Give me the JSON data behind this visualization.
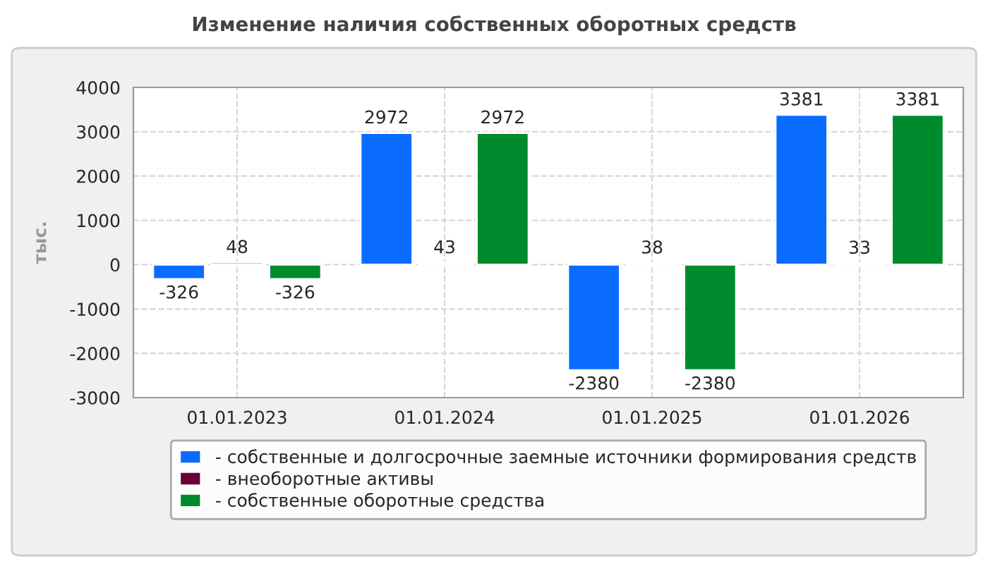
{
  "chart_data": {
    "type": "bar",
    "title": "Изменение наличия собственных оборотных средств",
    "ylabel": "тыс.",
    "categories": [
      "01.01.2023",
      "01.01.2024",
      "01.01.2025",
      "01.01.2026"
    ],
    "series": [
      {
        "name": "- собственные и долгосрочные заемные источники формирования средств",
        "color": "#0a6cff",
        "values": [
          -326,
          2972,
          -2380,
          3381
        ]
      },
      {
        "name": "- внеоборотные активы",
        "color": "#6b0035",
        "values": [
          48,
          43,
          38,
          33
        ]
      },
      {
        "name": "- собственные оборотные средства",
        "color": "#008a2e",
        "values": [
          -326,
          2972,
          -2380,
          3381
        ]
      }
    ],
    "ylim": [
      -3000,
      4000
    ],
    "yticks": [
      -3000,
      -2000,
      -1000,
      0,
      1000,
      2000,
      3000,
      4000
    ],
    "grid": true,
    "legend": "bottom",
    "data_labels": true
  }
}
